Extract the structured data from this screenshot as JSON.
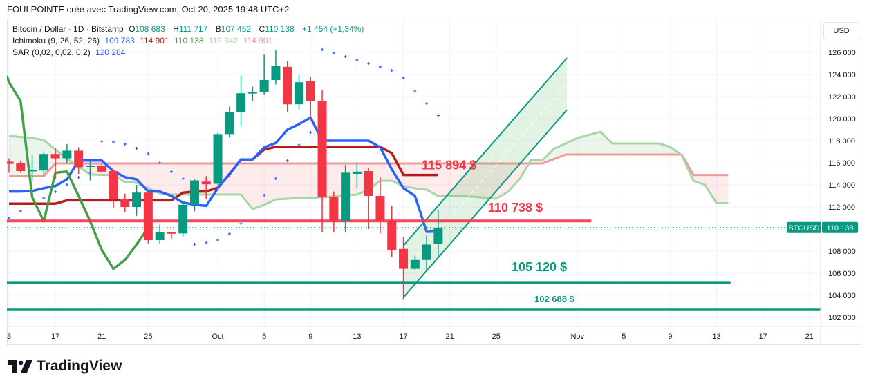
{
  "title": "FOULPOINTE créé avec TradingView.com, Oct 20, 2025 19:48 UTC+2",
  "legend": {
    "symbol": "Bitcoin / Dollar · 1D · Bitstamp",
    "o_label": "O",
    "o": "108 683",
    "h_label": "H",
    "h": "111 717",
    "l_label": "B",
    "l": "107 452",
    "c_label": "C",
    "c": "110 138",
    "change": "+1 454 (+1,34%)",
    "ichimoku_label": "Ichimoku (9, 26, 52, 26)",
    "ichimoku_values": [
      "109 783",
      "114 901",
      "110 138",
      "112 342",
      "114 901"
    ],
    "sar_label": "SAR (0,02, 0,02, 0,2)",
    "sar_value": "120 284"
  },
  "currency_button": "USD",
  "logo_text": "TradingView",
  "colors": {
    "up": "#089981",
    "down": "#f23645",
    "tenkan": "#2962ff",
    "kijun": "#b71c1c",
    "chikou": "#43a047",
    "senkou_a": "#a5d6a7",
    "senkou_b": "#ef9a9a",
    "sar": "#2962ff"
  },
  "chart_data": {
    "type": "candlestick",
    "symbol": "BTCUSD",
    "ylim": [
      101000,
      127500
    ],
    "y_ticks": [
      {
        "v": 126000,
        "label": "126 000"
      },
      {
        "v": 124000,
        "label": "124 000"
      },
      {
        "v": 122000,
        "label": "122 000"
      },
      {
        "v": 120000,
        "label": "120 000"
      },
      {
        "v": 118000,
        "label": "118 000"
      },
      {
        "v": 116000,
        "label": "116 000"
      },
      {
        "v": 114000,
        "label": "114 000"
      },
      {
        "v": 112000,
        "label": "112 000"
      },
      {
        "v": 108000,
        "label": "108 000"
      },
      {
        "v": 106000,
        "label": "106 000"
      },
      {
        "v": 104000,
        "label": "104 000"
      },
      {
        "v": 102000,
        "label": "102 000"
      }
    ],
    "x_unit": "days since Sep 13, 2025",
    "x_ticks": [
      {
        "d": 0,
        "label": "3"
      },
      {
        "d": 4,
        "label": "17"
      },
      {
        "d": 8,
        "label": "21"
      },
      {
        "d": 12,
        "label": "25"
      },
      {
        "d": 18,
        "label": "Oct"
      },
      {
        "d": 22,
        "label": "5"
      },
      {
        "d": 26,
        "label": "9"
      },
      {
        "d": 30,
        "label": "13"
      },
      {
        "d": 34,
        "label": "17"
      },
      {
        "d": 38,
        "label": "21"
      },
      {
        "d": 42,
        "label": "25"
      },
      {
        "d": 49,
        "label": "Nov"
      },
      {
        "d": 53,
        "label": "5"
      },
      {
        "d": 57,
        "label": "9"
      },
      {
        "d": 61,
        "label": "13"
      },
      {
        "d": 65,
        "label": "17"
      },
      {
        "d": 69,
        "label": "21"
      }
    ],
    "candles": [
      [
        116100,
        116400,
        115100,
        115900
      ],
      [
        115950,
        116200,
        115100,
        115250
      ],
      [
        115250,
        116700,
        114400,
        115350
      ],
      [
        115300,
        117000,
        114700,
        116800
      ],
      [
        116800,
        117300,
        114500,
        116400
      ],
      [
        116400,
        117700,
        116000,
        117100
      ],
      [
        117100,
        117400,
        115000,
        115600
      ],
      [
        115700,
        116100,
        114400,
        115750
      ],
      [
        115750,
        115900,
        115100,
        115200
      ],
      [
        115250,
        115400,
        111900,
        112700
      ],
      [
        112700,
        113200,
        111500,
        112000
      ],
      [
        112000,
        114000,
        111200,
        113300
      ],
      [
        113300,
        113400,
        108700,
        109000
      ],
      [
        109000,
        110400,
        108700,
        109700
      ],
      [
        109700,
        109750,
        109100,
        109600
      ],
      [
        109600,
        112400,
        109300,
        112200
      ],
      [
        112200,
        114500,
        111600,
        114400
      ],
      [
        114300,
        114800,
        112700,
        114050
      ],
      [
        114100,
        118700,
        114000,
        118600
      ],
      [
        118600,
        121100,
        118300,
        120600
      ],
      [
        120600,
        123900,
        119300,
        122300
      ],
      [
        122300,
        122900,
        121600,
        122400
      ],
      [
        122400,
        125800,
        122200,
        123500
      ],
      [
        123500,
        126250,
        123100,
        124750
      ],
      [
        124700,
        125250,
        120600,
        121300
      ],
      [
        121300,
        124000,
        120800,
        123300
      ],
      [
        123400,
        123800,
        119800,
        121600
      ],
      [
        121600,
        122600,
        109700,
        112900
      ],
      [
        112900,
        113400,
        109700,
        110700
      ],
      [
        110700,
        115800,
        109700,
        115100
      ],
      [
        115000,
        116000,
        113750,
        115200
      ],
      [
        115250,
        115500,
        110000,
        113000
      ],
      [
        113000,
        114700,
        109600,
        110700
      ],
      [
        110700,
        112100,
        107500,
        108100
      ],
      [
        108200,
        109250,
        103600,
        106400
      ],
      [
        106400,
        107600,
        106300,
        107200
      ],
      [
        107200,
        109400,
        106200,
        108600
      ],
      [
        108683,
        111717,
        107452,
        110138
      ]
    ],
    "candle_fields": [
      "open",
      "high",
      "low",
      "close"
    ],
    "tenkan": [
      113400,
      113400,
      113450,
      113700,
      113900,
      114500,
      116200,
      116200,
      116200,
      115250,
      114700,
      114500,
      113400,
      113400,
      113000,
      112400,
      112200,
      112100,
      113700,
      115000,
      116300,
      116300,
      117400,
      117800,
      119000,
      119500,
      120100,
      118000,
      118000,
      118000,
      118000,
      118000,
      117400,
      115400,
      113700,
      113000,
      109750,
      109783
    ],
    "kijun": [
      112300,
      112300,
      112300,
      112300,
      112300,
      112600,
      112600,
      112600,
      112600,
      112600,
      112600,
      112600,
      112600,
      112600,
      112600,
      113300,
      113400,
      113400,
      113750,
      114940,
      116300,
      116300,
      117200,
      117440,
      117440,
      117440,
      117440,
      117440,
      117440,
      117440,
      117440,
      117440,
      117440,
      116875,
      114901,
      114901,
      114901,
      114901
    ],
    "chikou_shift": 25,
    "senkou_a": [
      [
        0,
        118440
      ],
      [
        2,
        118250
      ],
      [
        3,
        118060
      ],
      [
        4,
        117190
      ],
      [
        5,
        116375
      ],
      [
        6,
        115625
      ],
      [
        7,
        114940
      ],
      [
        9,
        114875
      ],
      [
        10,
        114250
      ],
      [
        11,
        114190
      ],
      [
        12,
        113690
      ],
      [
        13,
        113250
      ],
      [
        14,
        113125
      ],
      [
        20,
        113125
      ],
      [
        21,
        111810
      ],
      [
        22,
        112190
      ],
      [
        23,
        112690
      ],
      [
        25,
        112810
      ],
      [
        27,
        112875
      ],
      [
        30,
        113125
      ],
      [
        31,
        113560
      ],
      [
        32,
        114375
      ],
      [
        33,
        114375
      ],
      [
        34,
        113880
      ],
      [
        35,
        113690
      ],
      [
        36,
        113560
      ],
      [
        37,
        113000
      ],
      [
        38,
        113000
      ],
      [
        40,
        112940
      ],
      [
        42,
        112750
      ],
      [
        43,
        113375
      ],
      [
        44,
        114500
      ],
      [
        45,
        116250
      ],
      [
        46,
        116250
      ],
      [
        47,
        117300
      ],
      [
        48,
        117750
      ],
      [
        49,
        118250
      ],
      [
        51,
        118810
      ],
      [
        52,
        117750
      ],
      [
        56,
        117750
      ],
      [
        57,
        117440
      ],
      [
        58,
        116690
      ],
      [
        59,
        114375
      ],
      [
        60,
        114000
      ],
      [
        61,
        112342
      ],
      [
        62,
        112342
      ]
    ],
    "senkou_b": [
      [
        0,
        114810
      ],
      [
        3,
        114810
      ],
      [
        4,
        115940
      ],
      [
        46,
        115940
      ],
      [
        48,
        116750
      ],
      [
        58,
        116750
      ],
      [
        59,
        114901
      ],
      [
        62,
        114901
      ]
    ],
    "sar": [
      [
        0,
        111000
      ],
      [
        1,
        111625
      ],
      [
        3,
        112810
      ],
      [
        4,
        113375
      ],
      [
        5,
        114000
      ],
      [
        6,
        114690
      ],
      [
        7,
        115125
      ],
      [
        8,
        117940
      ],
      [
        9,
        117875
      ],
      [
        10,
        117690
      ],
      [
        11,
        117310
      ],
      [
        12,
        116810
      ],
      [
        13,
        116000
      ],
      [
        14,
        115190
      ],
      [
        15,
        114560
      ],
      [
        16,
        108625
      ],
      [
        17,
        108750
      ],
      [
        18,
        109000
      ],
      [
        19,
        109560
      ],
      [
        20,
        110500
      ],
      [
        22,
        113060
      ],
      [
        23,
        114560
      ],
      [
        24,
        116190
      ],
      [
        25,
        117625
      ],
      [
        26,
        118750
      ],
      [
        27,
        126250
      ],
      [
        28,
        125940
      ],
      [
        29,
        125625
      ],
      [
        30,
        125310
      ],
      [
        31,
        125000
      ],
      [
        32,
        124690
      ],
      [
        33,
        124375
      ],
      [
        34,
        123690
      ],
      [
        35,
        122500
      ],
      [
        36,
        121375
      ],
      [
        37,
        120284
      ]
    ],
    "levels": [
      {
        "name": "resistance",
        "price": 110738,
        "label": "110 738 $",
        "color": "#f23645",
        "from_d": -0.2,
        "to_d": 50.2
      },
      {
        "name": "support",
        "price": 105120,
        "label": "105 120 $",
        "color": "#089981",
        "from_d": -0.2,
        "to_d": 62.2
      },
      {
        "name": "support-low",
        "price": 102688,
        "label": "102 688 $",
        "color": "#089981",
        "from_d": -0.2,
        "to_d": 70
      }
    ],
    "annotations": [
      {
        "label": "115 894 $",
        "color": "#f23645",
        "d": 36.3,
        "price": 115894
      }
    ],
    "channel": {
      "start_d": 34,
      "end_d": 48.1,
      "upper": [
        108500,
        125500
      ],
      "lower": [
        103800,
        120800
      ]
    },
    "last_price": {
      "symbol": "BTCUSD",
      "value": 110138,
      "label": "110 138"
    }
  }
}
